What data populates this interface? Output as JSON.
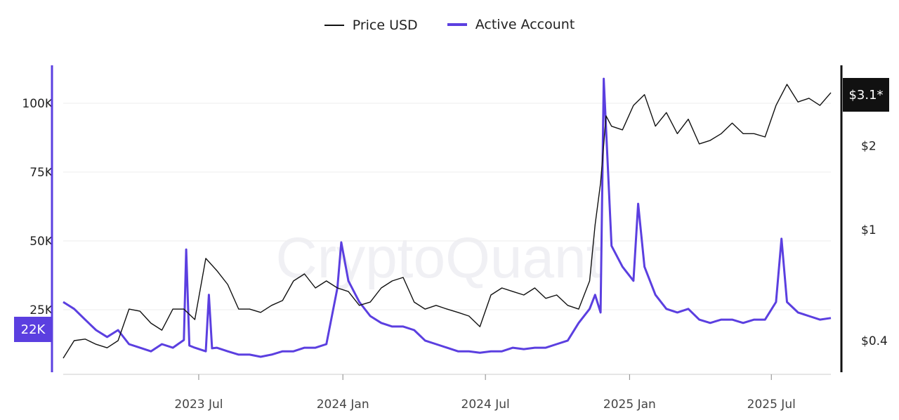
{
  "chart_data": {
    "type": "line",
    "title": "",
    "watermark": "CryptoQuant",
    "legend_position": "top-center",
    "grid": true,
    "colors": {
      "price": "#111111",
      "active": "#5b3fe0"
    },
    "x_ticks": [
      "2023 Jul",
      "2024 Jan",
      "2024 Jul",
      "2025 Jan",
      "2025 Jul"
    ],
    "x_tick_dates": [
      "2023-07-01",
      "2024-01-01",
      "2024-07-01",
      "2025-01-01",
      "2025-07-01"
    ],
    "xlim": [
      "2023-01-09",
      "2025-09-15"
    ],
    "y_left": {
      "label": "",
      "ticks": [
        25000,
        50000,
        75000,
        100000
      ],
      "tick_labels": [
        "25K",
        "50K",
        "75K",
        "100K"
      ],
      "ylim": [
        0,
        112000
      ],
      "current_label": "22K"
    },
    "y_right": {
      "label": "",
      "scale": "log",
      "ticks": [
        0.4,
        1,
        2
      ],
      "tick_labels": [
        "$0.4",
        "$1",
        "$2"
      ],
      "ylim": [
        0.31,
        3.6
      ],
      "current_label": "$3.1*"
    },
    "series": [
      {
        "name": "Price USD",
        "axis": "right",
        "x": [
          "2023-01-09",
          "2023-01-23",
          "2023-02-06",
          "2023-02-20",
          "2023-03-06",
          "2023-03-20",
          "2023-04-03",
          "2023-04-17",
          "2023-05-01",
          "2023-05-15",
          "2023-05-29",
          "2023-06-12",
          "2023-06-26",
          "2023-07-10",
          "2023-07-24",
          "2023-08-07",
          "2023-08-21",
          "2023-09-04",
          "2023-09-18",
          "2023-10-02",
          "2023-10-16",
          "2023-10-30",
          "2023-11-13",
          "2023-11-27",
          "2023-12-11",
          "2023-12-25",
          "2024-01-08",
          "2024-01-22",
          "2024-02-05",
          "2024-02-19",
          "2024-03-04",
          "2024-03-18",
          "2024-04-01",
          "2024-04-15",
          "2024-04-29",
          "2024-05-13",
          "2024-05-27",
          "2024-06-10",
          "2024-06-24",
          "2024-07-08",
          "2024-07-22",
          "2024-08-05",
          "2024-08-19",
          "2024-09-02",
          "2024-09-16",
          "2024-09-30",
          "2024-10-14",
          "2024-10-28",
          "2024-11-11",
          "2024-11-18",
          "2024-11-25",
          "2024-12-02",
          "2024-12-09",
          "2024-12-23",
          "2025-01-06",
          "2025-01-20",
          "2025-02-03",
          "2025-02-17",
          "2025-03-03",
          "2025-03-17",
          "2025-03-31",
          "2025-04-14",
          "2025-04-28",
          "2025-05-12",
          "2025-05-26",
          "2025-06-09",
          "2025-06-23",
          "2025-07-07",
          "2025-07-21",
          "2025-08-04",
          "2025-08-18",
          "2025-09-01",
          "2025-09-15"
        ],
        "values": [
          0.346,
          0.4,
          0.405,
          0.388,
          0.377,
          0.4,
          0.519,
          0.51,
          0.462,
          0.436,
          0.519,
          0.519,
          0.476,
          0.789,
          0.714,
          0.636,
          0.519,
          0.519,
          0.505,
          0.535,
          0.557,
          0.655,
          0.694,
          0.618,
          0.655,
          0.618,
          0.6,
          0.535,
          0.55,
          0.618,
          0.655,
          0.674,
          0.55,
          0.519,
          0.535,
          0.519,
          0.505,
          0.49,
          0.449,
          0.583,
          0.618,
          0.6,
          0.583,
          0.618,
          0.567,
          0.583,
          0.535,
          0.519,
          0.655,
          1.04,
          1.47,
          2.56,
          2.35,
          2.28,
          2.79,
          3.05,
          2.35,
          2.63,
          2.21,
          2.49,
          2.03,
          2.09,
          2.21,
          2.41,
          2.21,
          2.21,
          2.15,
          2.79,
          3.32,
          2.87,
          2.96,
          2.79,
          3.1
        ]
      },
      {
        "name": "Active Account",
        "axis": "left",
        "x": [
          "2023-01-09",
          "2023-01-23",
          "2023-02-06",
          "2023-02-20",
          "2023-03-06",
          "2023-03-20",
          "2023-04-03",
          "2023-04-17",
          "2023-05-01",
          "2023-05-15",
          "2023-05-29",
          "2023-06-12",
          "2023-06-15",
          "2023-06-19",
          "2023-06-26",
          "2023-07-10",
          "2023-07-14",
          "2023-07-18",
          "2023-07-24",
          "2023-08-07",
          "2023-08-21",
          "2023-09-04",
          "2023-09-18",
          "2023-10-02",
          "2023-10-16",
          "2023-10-30",
          "2023-11-13",
          "2023-11-27",
          "2023-12-11",
          "2023-12-25",
          "2023-12-30",
          "2024-01-08",
          "2024-01-22",
          "2024-02-05",
          "2024-02-19",
          "2024-03-04",
          "2024-03-18",
          "2024-04-01",
          "2024-04-15",
          "2024-04-29",
          "2024-05-13",
          "2024-05-27",
          "2024-06-10",
          "2024-06-24",
          "2024-07-08",
          "2024-07-22",
          "2024-08-05",
          "2024-08-19",
          "2024-09-02",
          "2024-09-16",
          "2024-09-30",
          "2024-10-14",
          "2024-10-28",
          "2024-11-11",
          "2024-11-18",
          "2024-11-25",
          "2024-11-29",
          "2024-12-09",
          "2024-12-23",
          "2025-01-06",
          "2025-01-12",
          "2025-01-20",
          "2025-02-03",
          "2025-02-17",
          "2025-03-03",
          "2025-03-17",
          "2025-03-31",
          "2025-04-14",
          "2025-04-28",
          "2025-05-12",
          "2025-05-26",
          "2025-06-09",
          "2025-06-23",
          "2025-07-07",
          "2025-07-14",
          "2025-07-21",
          "2025-08-04",
          "2025-08-18",
          "2025-09-01",
          "2025-09-15"
        ],
        "values": [
          27800,
          25300,
          21400,
          17600,
          15100,
          17600,
          12500,
          11200,
          9900,
          12500,
          11200,
          14000,
          46900,
          12000,
          11200,
          9900,
          30400,
          11000,
          11200,
          9900,
          8700,
          8700,
          7900,
          8700,
          9900,
          9900,
          11200,
          11200,
          12500,
          32900,
          49500,
          35500,
          27800,
          22700,
          20200,
          18900,
          18900,
          17600,
          13800,
          12500,
          11200,
          9900,
          9900,
          9400,
          9900,
          9900,
          11200,
          10700,
          11200,
          11200,
          12500,
          13800,
          20200,
          25300,
          30400,
          24000,
          108900,
          48200,
          40600,
          35500,
          63500,
          40600,
          30400,
          25300,
          24000,
          25300,
          21400,
          20200,
          21400,
          21400,
          20200,
          21400,
          21400,
          27800,
          50800,
          27800,
          24000,
          22700,
          21400,
          22000
        ]
      }
    ]
  }
}
